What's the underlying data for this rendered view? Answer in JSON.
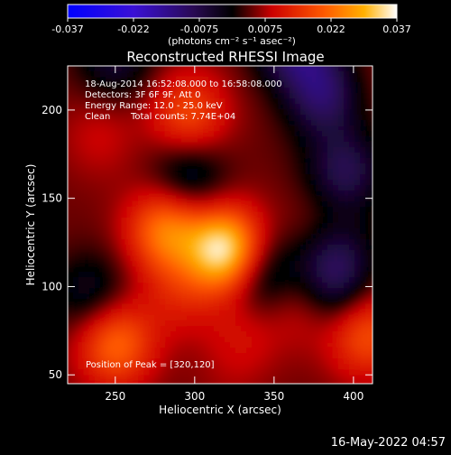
{
  "chart_data": {
    "type": "heatmap",
    "title": "Reconstructed RHESSI Image",
    "xlabel": "Heliocentric X (arcsec)",
    "ylabel": "Heliocentric Y (arcsec)",
    "xlim": [
      220,
      412
    ],
    "ylim": [
      45,
      225
    ],
    "x_ticks": [
      250,
      300,
      350,
      400
    ],
    "y_ticks": [
      50,
      100,
      150,
      200
    ],
    "colorbar": {
      "ticks": [
        "-0.037",
        "-0.022",
        "-0.0075",
        "0.0075",
        "0.022",
        "0.037"
      ],
      "min": -0.037,
      "max": 0.037,
      "unit_label": "(photons cm⁻² s⁻¹ asec⁻²)",
      "colormap": "hessi (blue-purple-black-red-orange-yellow-white)"
    },
    "annotations": {
      "time_range": "18-Aug-2014 16:52:08.000 to 16:58:08.000",
      "detectors": "Detectors: 3F 6F 9F, Att 0",
      "energy_range": "Energy Range: 12.0 - 25.0 keV",
      "method": "Clean",
      "total_counts": "Total counts: 7.74E+04",
      "peak": "Position of Peak = [320,120]"
    },
    "peak_position": [
      320,
      120
    ],
    "sources": [
      {
        "x": 320,
        "y": 120,
        "value": 0.037
      },
      {
        "x": 282,
        "y": 132,
        "value": 0.024
      },
      {
        "x": 250,
        "y": 68,
        "value": 0.022
      },
      {
        "x": 296,
        "y": 197,
        "value": 0.018
      },
      {
        "x": 408,
        "y": 73,
        "value": 0.019
      },
      {
        "x": 370,
        "y": 90,
        "value": 0.012
      },
      {
        "x": 330,
        "y": 72,
        "value": 0.01
      },
      {
        "x": 240,
        "y": 185,
        "value": 0.009
      },
      {
        "x": 290,
        "y": 95,
        "value": 0.011
      },
      {
        "x": 380,
        "y": 130,
        "value": 0.009
      },
      {
        "x": 400,
        "y": 215,
        "value": 0.007
      },
      {
        "x": 370,
        "y": 185,
        "value": 0.004
      },
      {
        "x": 355,
        "y": 215,
        "value": 0.005
      },
      {
        "x": 305,
        "y": 165,
        "value": 0.005
      },
      {
        "x": 395,
        "y": 165,
        "value": -0.008
      },
      {
        "x": 388,
        "y": 118,
        "value": -0.007
      },
      {
        "x": 382,
        "y": 210,
        "value": -0.011
      },
      {
        "x": 296,
        "y": 162,
        "value": -0.006
      },
      {
        "x": 362,
        "y": 238,
        "value": -0.012
      },
      {
        "x": 340,
        "y": 108,
        "value": -0.008
      },
      {
        "x": 386,
        "y": 97,
        "value": -0.006
      },
      {
        "x": 235,
        "y": 95,
        "value": -0.004
      },
      {
        "x": 250,
        "y": 230,
        "value": -0.005
      },
      {
        "x": 320,
        "y": 40,
        "value": 0.006
      }
    ]
  },
  "footer": {
    "timestamp": "16-May-2022 04:57"
  }
}
